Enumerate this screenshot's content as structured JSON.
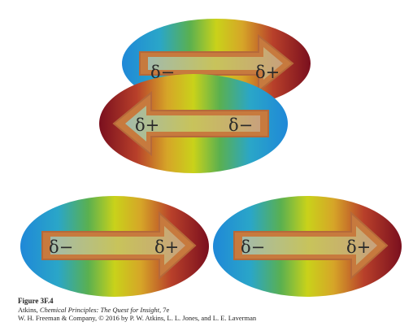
{
  "molecules": [
    {
      "left_label": "δ−",
      "right_label": "δ+",
      "arrow": "right"
    },
    {
      "left_label": "δ+",
      "right_label": "δ−",
      "arrow": "left"
    },
    {
      "left_label": "δ−",
      "right_label": "δ+",
      "arrow": "right"
    },
    {
      "left_label": "δ−",
      "right_label": "δ+",
      "arrow": "right"
    }
  ],
  "caption": {
    "title": "Figure 3F.4",
    "line1_prefix": "Atkins, ",
    "line1_italic": "Chemical Principles: The Quest for Insight,",
    "line1_suffix": " 7e",
    "line2": "W. H. Freeman & Company, © 2016 by P. W. Atkins, L. L. Jones, and L. E. Laverman"
  },
  "colors": {
    "negative_end": "#1f88d8",
    "positive_end": "#7a0f1e",
    "mid": "#c9d21a",
    "arrow_fill": "#c77a3e",
    "arrow_inner": "#a9c890",
    "arrow_stroke": "#b5693a"
  }
}
